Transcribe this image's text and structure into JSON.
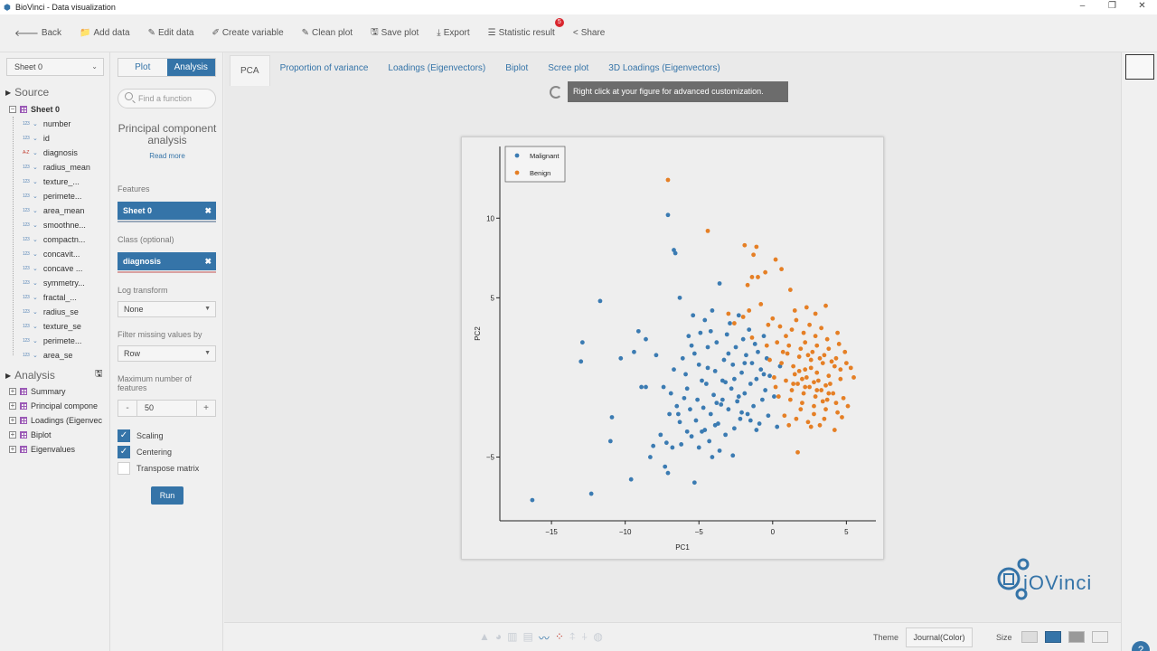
{
  "window": {
    "title": "BioVinci - Data visualization",
    "controls": [
      "–",
      "❐",
      "✕"
    ]
  },
  "toolbar": [
    {
      "name": "back-button",
      "icon": "🡐",
      "label": "Back"
    },
    {
      "name": "add-data-button",
      "icon": "📁",
      "label": "Add data"
    },
    {
      "name": "edit-data-button",
      "icon": "✎",
      "label": "Edit data"
    },
    {
      "name": "create-variable-button",
      "icon": "✐",
      "label": "Create variable"
    },
    {
      "name": "clean-plot-button",
      "icon": "✎",
      "label": "Clean plot"
    },
    {
      "name": "save-plot-button",
      "icon": "🖫",
      "label": "Save plot"
    },
    {
      "name": "export-button",
      "icon": "⤓",
      "label": "Export"
    },
    {
      "name": "statistic-result-button",
      "icon": "☰",
      "label": "Statistic result",
      "badge": "5"
    },
    {
      "name": "share-button",
      "icon": "<",
      "label": "Share"
    }
  ],
  "source_panel": {
    "sheet_select": "Sheet 0",
    "source_heading": "Source",
    "sheet_name": "Sheet 0",
    "variables": [
      {
        "label": "number",
        "type": "123"
      },
      {
        "label": "id",
        "type": "123"
      },
      {
        "label": "diagnosis",
        "type": "A-Z"
      },
      {
        "label": "radius_mean",
        "type": "123"
      },
      {
        "label": "texture_...",
        "type": "123"
      },
      {
        "label": "perimete...",
        "type": "123"
      },
      {
        "label": "area_mean",
        "type": "123"
      },
      {
        "label": "smoothne...",
        "type": "123"
      },
      {
        "label": "compactn...",
        "type": "123"
      },
      {
        "label": "concavit...",
        "type": "123"
      },
      {
        "label": "concave ...",
        "type": "123"
      },
      {
        "label": "symmetry...",
        "type": "123"
      },
      {
        "label": "fractal_...",
        "type": "123"
      },
      {
        "label": "radius_se",
        "type": "123"
      },
      {
        "label": "texture_se",
        "type": "123"
      },
      {
        "label": "perimete...",
        "type": "123"
      },
      {
        "label": "area_se",
        "type": "123"
      }
    ],
    "analysis_heading": "Analysis",
    "analysis_items": [
      "Summary",
      "Principal compone",
      "Loadings (Eigenvec",
      "Biplot",
      "Eigenvalues"
    ]
  },
  "analysis_panel": {
    "tabs": [
      "Plot",
      "Analysis"
    ],
    "active_tab": "Analysis",
    "search_placeholder": "Find a function",
    "function_title": "Principal component analysis",
    "read_more": "Read more",
    "features_label": "Features",
    "features_value": "Sheet 0",
    "class_label": "Class (optional)",
    "class_value": "diagnosis",
    "log_transform_label": "Log transform",
    "log_transform_value": "None",
    "filter_missing_label": "Filter missing values by",
    "filter_missing_value": "Row",
    "max_features_label": "Maximum number of features",
    "max_features_value": "50",
    "stepper_minus": "-",
    "stepper_plus": "+",
    "scaling_label": "Scaling",
    "centering_label": "Centering",
    "transpose_label": "Transpose matrix",
    "run_label": "Run"
  },
  "main": {
    "tabs": [
      "PCA",
      "Proportion of variance",
      "Loadings (Eigenvectors)",
      "Biplot",
      "Scree plot",
      "3D Loadings (Eigenvectors)"
    ],
    "active_tab": "PCA",
    "tooltip": "Right click at your figure for advanced customization."
  },
  "bottom_bar": {
    "theme_label": "Theme",
    "theme_value": "Journal(Color)",
    "size_label": "Size",
    "help": "?"
  },
  "logo": {
    "text": "iOVinci"
  },
  "chart_data": {
    "type": "scatter",
    "xlabel": "PC1",
    "ylabel": "PC2",
    "xlim": [
      -18.5,
      7
    ],
    "ylim": [
      -9,
      14.5
    ],
    "xticks": [
      -15,
      -10,
      -5,
      0,
      5
    ],
    "yticks": [
      -5,
      5,
      10
    ],
    "legend": "top-left",
    "grid": false,
    "colors": {
      "Malignant": "#3b7bb2",
      "Benign": "#e57f25"
    },
    "series": [
      {
        "name": "Malignant",
        "points": [
          [
            -16.3,
            -7.7
          ],
          [
            -12.3,
            -7.3
          ],
          [
            -13,
            1
          ],
          [
            -12.9,
            2.2
          ],
          [
            -11.7,
            4.8
          ],
          [
            -10.9,
            -2.5
          ],
          [
            -11,
            -4
          ],
          [
            -10.3,
            1.2
          ],
          [
            -9.6,
            -6.4
          ],
          [
            -9.4,
            1.6
          ],
          [
            -9.1,
            2.9
          ],
          [
            -8.9,
            -0.6
          ],
          [
            -8.6,
            -0.6
          ],
          [
            -8.3,
            -5
          ],
          [
            -8.6,
            2.4
          ],
          [
            -8.1,
            -4.3
          ],
          [
            -7.9,
            1.4
          ],
          [
            -7.6,
            -3.6
          ],
          [
            -7.4,
            -0.6
          ],
          [
            -7.3,
            -5.6
          ],
          [
            -7.1,
            -6
          ],
          [
            -7.2,
            -4.1
          ],
          [
            -7.1,
            10.2
          ],
          [
            -6.7,
            8
          ],
          [
            -6.6,
            7.8
          ],
          [
            -7,
            -2.3
          ],
          [
            -6.9,
            -1
          ],
          [
            -6.7,
            0.5
          ],
          [
            -6.5,
            -1.8
          ],
          [
            -6.3,
            -2.8
          ],
          [
            -6.2,
            -4.2
          ],
          [
            -6.3,
            5
          ],
          [
            -6.1,
            1.2
          ],
          [
            -6,
            -1.3
          ],
          [
            -5.9,
            0.2
          ],
          [
            -5.8,
            -0.7
          ],
          [
            -5.7,
            2.6
          ],
          [
            -5.6,
            -2
          ],
          [
            -5.5,
            -3.7
          ],
          [
            -5.4,
            3.9
          ],
          [
            -5.3,
            1.5
          ],
          [
            -5.2,
            -2.7
          ],
          [
            -5.1,
            -1.4
          ],
          [
            -5,
            0.8
          ],
          [
            -4.9,
            2.8
          ],
          [
            -4.8,
            -3.4
          ],
          [
            -4.7,
            -1.9
          ],
          [
            -4.6,
            3.6
          ],
          [
            -4.5,
            -0.4
          ],
          [
            -4.4,
            1.9
          ],
          [
            -4.3,
            -4
          ],
          [
            -4.2,
            -2.3
          ],
          [
            -4.1,
            4.2
          ],
          [
            -4,
            -1.1
          ],
          [
            -3.9,
            0.4
          ],
          [
            -3.8,
            2.2
          ],
          [
            -3.7,
            -2.9
          ],
          [
            -3.6,
            5.9
          ],
          [
            -3.5,
            -1.7
          ],
          [
            -3.4,
            -0.2
          ],
          [
            -3.3,
            1.1
          ],
          [
            -3.2,
            -3.6
          ],
          [
            -3.1,
            2.7
          ],
          [
            -3,
            -2
          ],
          [
            -2.9,
            3.4
          ],
          [
            -2.8,
            -0.7
          ],
          [
            -2.7,
            0.8
          ],
          [
            -2.6,
            -3.2
          ],
          [
            -2.5,
            1.9
          ],
          [
            -2.4,
            -1.5
          ],
          [
            -2.3,
            3.9
          ],
          [
            -2.2,
            -2.6
          ],
          [
            -2.1,
            0.3
          ],
          [
            -2,
            2.4
          ],
          [
            -1.9,
            -1
          ],
          [
            -1.8,
            1.4
          ],
          [
            -1.7,
            -2.3
          ],
          [
            -1.6,
            3
          ],
          [
            -1.5,
            -0.4
          ],
          [
            -1.4,
            0.9
          ],
          [
            -1.3,
            -1.8
          ],
          [
            -1.2,
            2.1
          ],
          [
            -1.1,
            -0.1
          ],
          [
            -1,
            1.6
          ],
          [
            -0.9,
            -2.9
          ],
          [
            -0.8,
            0.5
          ],
          [
            -0.7,
            -1.4
          ],
          [
            -0.6,
            2.6
          ],
          [
            -0.5,
            -0.8
          ],
          [
            -0.4,
            1.2
          ],
          [
            -0.3,
            -2.4
          ],
          [
            -0.2,
            0.1
          ],
          [
            0.1,
            -1.2
          ],
          [
            0.3,
            -3.1
          ],
          [
            0.5,
            0.7
          ],
          [
            -5.3,
            -6.6
          ],
          [
            -4.6,
            -3.3
          ],
          [
            -3.6,
            -4.6
          ],
          [
            -2.7,
            -4.9
          ],
          [
            -4.1,
            -5
          ],
          [
            -3.9,
            -3
          ],
          [
            -5.8,
            -3.4
          ],
          [
            -6.4,
            -2.3
          ],
          [
            -4.4,
            0.6
          ],
          [
            -3.4,
            -1.4
          ],
          [
            -2.3,
            -1.2
          ],
          [
            -1.5,
            -2.7
          ],
          [
            -4.8,
            -0.2
          ],
          [
            -5.5,
            2
          ],
          [
            -3,
            1.5
          ],
          [
            -2.1,
            -2.2
          ],
          [
            -1.9,
            0.9
          ],
          [
            -6.8,
            -4.4
          ],
          [
            -5,
            -4.4
          ],
          [
            -3.2,
            -0.3
          ],
          [
            -2.6,
            -0.1
          ],
          [
            -1.1,
            -3.3
          ],
          [
            -0.6,
            0.2
          ],
          [
            -4.2,
            2.9
          ],
          [
            -3.8,
            -1.6
          ]
        ]
      },
      {
        "name": "Benign",
        "points": [
          [
            -7.1,
            12.4
          ],
          [
            -4.4,
            9.2
          ],
          [
            -1.9,
            8.3
          ],
          [
            -1.1,
            8.2
          ],
          [
            0.2,
            7.4
          ],
          [
            -1.3,
            7.7
          ],
          [
            -0.5,
            6.6
          ],
          [
            0.6,
            6.8
          ],
          [
            -1.7,
            5.8
          ],
          [
            -1.4,
            6.3
          ],
          [
            -1,
            6.3
          ],
          [
            -1.6,
            4.2
          ],
          [
            1.2,
            5.5
          ],
          [
            -0.8,
            4.6
          ],
          [
            2.3,
            4.4
          ],
          [
            3.6,
            4.5
          ],
          [
            -3,
            4
          ],
          [
            -2.6,
            3.4
          ],
          [
            -2,
            3.8
          ],
          [
            -1.4,
            2.5
          ],
          [
            -0.3,
            3.3
          ],
          [
            0.5,
            3.2
          ],
          [
            1.3,
            3
          ],
          [
            2.1,
            2.8
          ],
          [
            2.9,
            2.6
          ],
          [
            3.7,
            2.4
          ],
          [
            4.5,
            2.1
          ],
          [
            5.3,
            0.6
          ],
          [
            0.3,
            2.2
          ],
          [
            1.1,
            2
          ],
          [
            1.9,
            1.8
          ],
          [
            2.7,
            1.6
          ],
          [
            3.5,
            1.4
          ],
          [
            4.3,
            1.2
          ],
          [
            5,
            0.9
          ],
          [
            -0.2,
            1.1
          ],
          [
            0.6,
            0.9
          ],
          [
            1.4,
            0.7
          ],
          [
            2.2,
            0.5
          ],
          [
            3,
            0.3
          ],
          [
            3.8,
            0.1
          ],
          [
            4.6,
            -0.1
          ],
          [
            5.1,
            -1.8
          ],
          [
            0.1,
            0
          ],
          [
            0.9,
            -0.2
          ],
          [
            1.7,
            -0.4
          ],
          [
            2.5,
            -0.6
          ],
          [
            3.3,
            -0.8
          ],
          [
            4.1,
            -1
          ],
          [
            4.8,
            -1.3
          ],
          [
            0.4,
            -1.2
          ],
          [
            1.2,
            -1.4
          ],
          [
            2,
            -1.6
          ],
          [
            2.8,
            -1.8
          ],
          [
            3.6,
            -2
          ],
          [
            4.4,
            -2.2
          ],
          [
            0.8,
            -2.4
          ],
          [
            1.6,
            -2.6
          ],
          [
            2.4,
            -2.8
          ],
          [
            3.2,
            -3
          ],
          [
            4.2,
            -3.3
          ],
          [
            1.7,
            -4.7
          ],
          [
            4.7,
            -2.5
          ],
          [
            2.6,
            -3.1
          ],
          [
            1,
            1.5
          ],
          [
            1.8,
            1.3
          ],
          [
            2.6,
            1.1
          ],
          [
            3.4,
            0.9
          ],
          [
            4.2,
            0.7
          ],
          [
            1.5,
            0.2
          ],
          [
            2.3,
            0
          ],
          [
            3.1,
            -0.2
          ],
          [
            3.9,
            -0.4
          ],
          [
            1.3,
            -0.8
          ],
          [
            2.1,
            -1
          ],
          [
            2.9,
            -1.2
          ],
          [
            3.7,
            -1.4
          ],
          [
            2.2,
            2.2
          ],
          [
            3,
            2
          ],
          [
            3.8,
            1.8
          ],
          [
            1.6,
            3.6
          ],
          [
            2.5,
            3.3
          ],
          [
            3.3,
            3.1
          ],
          [
            0.7,
            1.6
          ],
          [
            2.8,
            -2.3
          ],
          [
            3.5,
            -2.6
          ],
          [
            4.3,
            -1.6
          ],
          [
            1.9,
            -2
          ],
          [
            2.4,
            1.4
          ],
          [
            3.2,
            1.2
          ],
          [
            4,
            1
          ],
          [
            2,
            -0.1
          ],
          [
            2.8,
            -0.3
          ],
          [
            3.6,
            -0.5
          ],
          [
            1.4,
            -0.4
          ],
          [
            2.2,
            -0.6
          ],
          [
            3,
            -0.8
          ],
          [
            3.8,
            -1
          ],
          [
            4.6,
            0.5
          ],
          [
            4.9,
            1.6
          ],
          [
            0.2,
            -0.6
          ],
          [
            0.9,
            2.6
          ],
          [
            1.5,
            4.2
          ],
          [
            2.9,
            4
          ],
          [
            3.4,
            -1.5
          ],
          [
            2.6,
            0.6
          ],
          [
            1.8,
            0.4
          ],
          [
            4.4,
            2.8
          ],
          [
            5.5,
            0
          ],
          [
            -0.4,
            2
          ],
          [
            0,
            3.7
          ],
          [
            1.1,
            -3
          ]
        ]
      }
    ]
  }
}
